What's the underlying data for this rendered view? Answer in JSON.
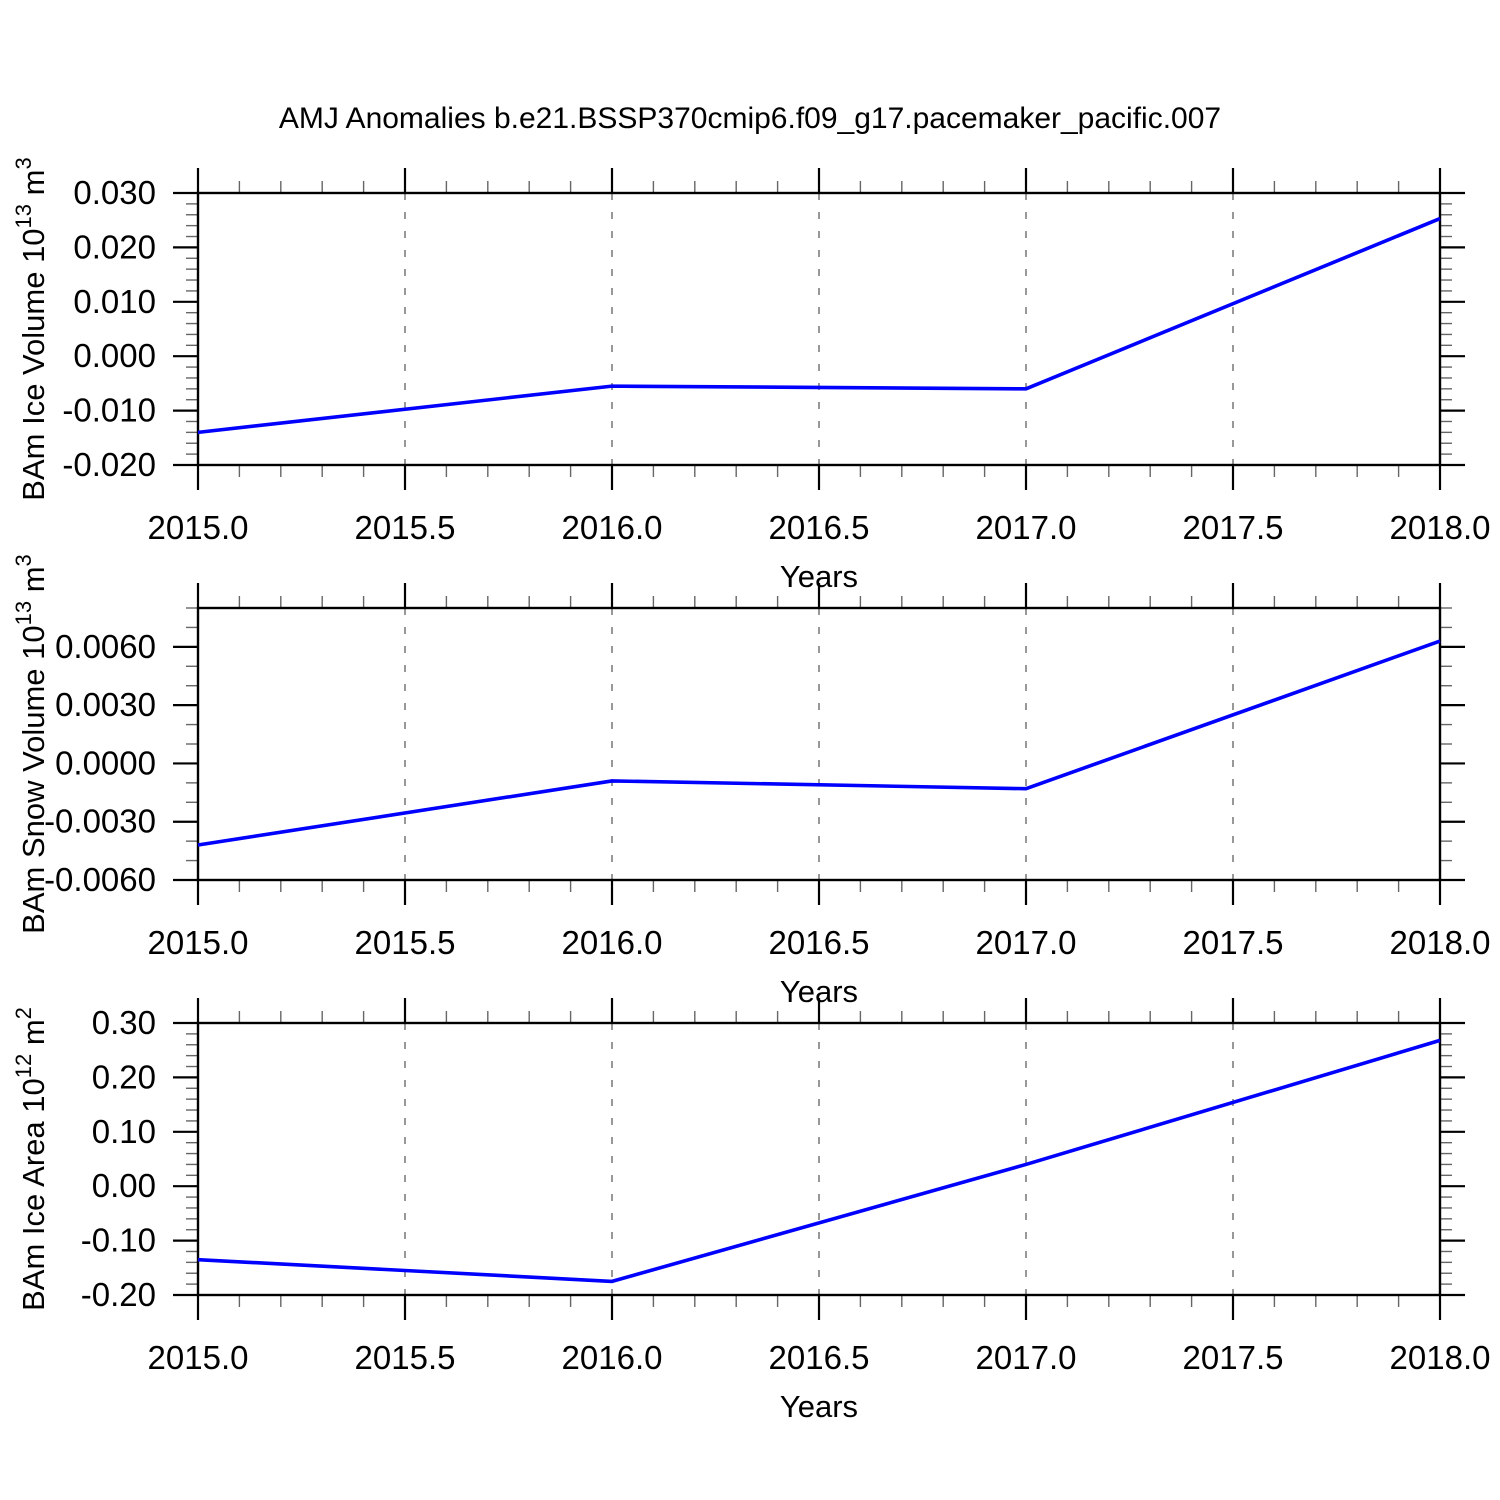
{
  "title": "AMJ Anomalies b.e21.BSSP370cmip6.f09_g17.pacemaker_pacific.007",
  "line_color": "#0000ff",
  "grid_color": "#7f7f7f",
  "chart_data": [
    {
      "type": "line",
      "name": "ice-volume",
      "y_title_base": "BAm Ice Volume 10",
      "y_title_exp": "13",
      "y_title_unit": " m",
      "y_title_unit_exp": "3",
      "x": [
        2015.0,
        2016.0,
        2017.0,
        2018.0
      ],
      "y": [
        -0.014,
        -0.0055,
        -0.006,
        0.0253
      ],
      "xlim": [
        2015.0,
        2018.0
      ],
      "ylim": [
        -0.02,
        0.03
      ],
      "x_tick_values": [
        2015.0,
        2015.5,
        2016.0,
        2016.5,
        2017.0,
        2017.5,
        2018.0
      ],
      "x_tick_labels": [
        "2015.0",
        "2015.5",
        "2016.0",
        "2016.5",
        "2017.0",
        "2017.5",
        "2018.0"
      ],
      "x_minor_step": 0.1,
      "grid_x": [
        2015.5,
        2016.0,
        2016.5,
        2017.0,
        2017.5
      ],
      "y_tick_values": [
        0.03,
        0.02,
        0.01,
        0.0,
        -0.01,
        -0.02
      ],
      "y_tick_labels": [
        "0.030",
        "0.020",
        "0.010",
        "0.000",
        "-0.010",
        "-0.020"
      ],
      "y_minor_step": 0.002,
      "xlabel": "Years"
    },
    {
      "type": "line",
      "name": "snow-volume",
      "y_title_base": "BAm Snow Volume 10",
      "y_title_exp": "13",
      "y_title_unit": " m",
      "y_title_unit_exp": "3",
      "x": [
        2015.0,
        2016.0,
        2017.0,
        2018.0
      ],
      "y": [
        -0.0042,
        -0.0009,
        -0.0013,
        0.0063
      ],
      "xlim": [
        2015.0,
        2018.0
      ],
      "ylim": [
        -0.006,
        0.008
      ],
      "x_tick_values": [
        2015.0,
        2015.5,
        2016.0,
        2016.5,
        2017.0,
        2017.5,
        2018.0
      ],
      "x_tick_labels": [
        "2015.0",
        "2015.5",
        "2016.0",
        "2016.5",
        "2017.0",
        "2017.5",
        "2018.0"
      ],
      "x_minor_step": 0.1,
      "grid_x": [
        2015.5,
        2016.0,
        2016.5,
        2017.0,
        2017.5
      ],
      "y_tick_values": [
        0.006,
        0.003,
        0.0,
        -0.003,
        -0.006
      ],
      "y_tick_labels": [
        "0.0060",
        "0.0030",
        "0.0000",
        "-0.0030",
        "-0.0060"
      ],
      "y_minor_step": 0.001,
      "xlabel": "Years"
    },
    {
      "type": "line",
      "name": "ice-area",
      "y_title_base": "BAm Ice Area 10",
      "y_title_exp": "12",
      "y_title_unit": " m",
      "y_title_unit_exp": "2",
      "x": [
        2015.0,
        2016.0,
        2017.0,
        2018.0
      ],
      "y": [
        -0.135,
        -0.175,
        0.04,
        0.268
      ],
      "xlim": [
        2015.0,
        2018.0
      ],
      "ylim": [
        -0.2,
        0.3
      ],
      "x_tick_values": [
        2015.0,
        2015.5,
        2016.0,
        2016.5,
        2017.0,
        2017.5,
        2018.0
      ],
      "x_tick_labels": [
        "2015.0",
        "2015.5",
        "2016.0",
        "2016.5",
        "2017.0",
        "2017.5",
        "2018.0"
      ],
      "x_minor_step": 0.1,
      "grid_x": [
        2015.5,
        2016.0,
        2016.5,
        2017.0,
        2017.5
      ],
      "y_tick_values": [
        0.3,
        0.2,
        0.1,
        0.0,
        -0.1,
        -0.2
      ],
      "y_tick_labels": [
        "0.30",
        "0.20",
        "0.10",
        "0.00",
        "-0.10",
        "-0.20"
      ],
      "y_minor_step": 0.02,
      "xlabel": "Years"
    }
  ]
}
